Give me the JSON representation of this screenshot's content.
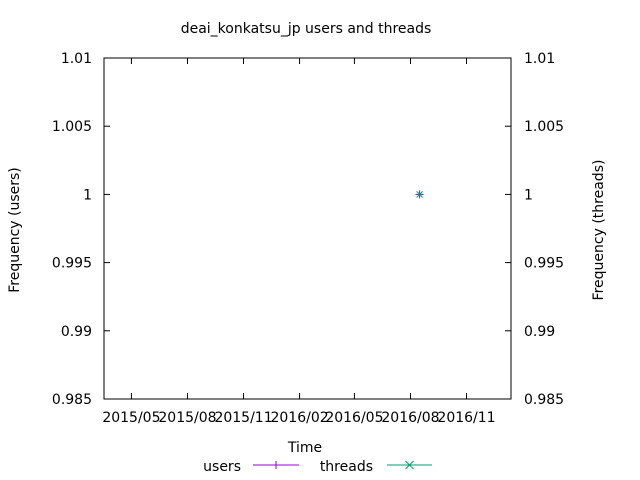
{
  "chart_data": {
    "type": "line",
    "title": "deai_konkatsu_jp users and threads",
    "xlabel": "Time",
    "ylabel_left": "Frequency (users)",
    "ylabel_right": "Frequency (threads)",
    "x_ticks": [
      "2015/05",
      "2015/08",
      "2015/11",
      "2016/02",
      "2016/05",
      "2016/08",
      "2016/11"
    ],
    "xlim": [
      "2015-03-17",
      "2017-01-13"
    ],
    "ylim": [
      0.985,
      1.01
    ],
    "y_ticks": [
      "1.01",
      "1.005",
      "1",
      "0.995",
      "0.99",
      "0.985"
    ],
    "y2_ticks": [
      "1.01",
      "1.005",
      "1",
      "0.995",
      "0.99",
      "0.985"
    ],
    "grid": false,
    "legend_position": "bottom",
    "series": [
      {
        "name": "users",
        "color": "#9400d3",
        "marker": "plus",
        "points": [
          {
            "x": "2016-08-16",
            "y": 1
          }
        ]
      },
      {
        "name": "threads",
        "color": "#009e73",
        "marker": "cross",
        "points": [
          {
            "x": "2016-08-16",
            "y": 1
          }
        ]
      }
    ]
  }
}
